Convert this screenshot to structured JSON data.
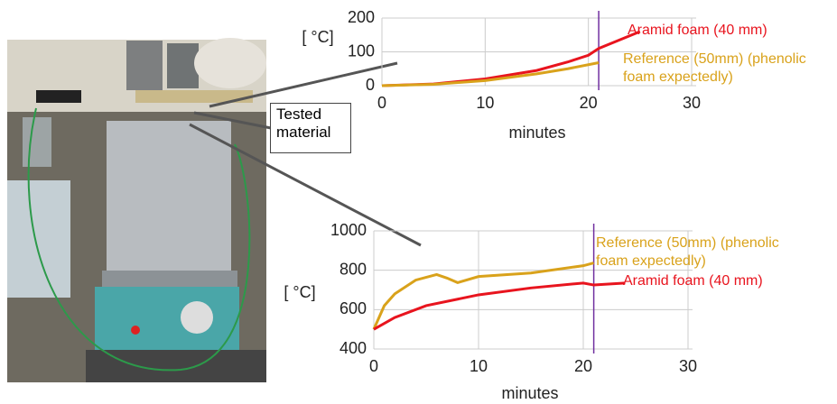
{
  "annotation": "Tested material",
  "chart_data": [
    {
      "type": "line",
      "ylabel": "[ °C]",
      "xlabel": "minutes",
      "xlim": [
        0,
        30
      ],
      "ylim": [
        0,
        200
      ],
      "xticks": [
        0,
        10,
        20,
        30
      ],
      "yticks": [
        0,
        100,
        200
      ],
      "grid": true,
      "marker_line": 21,
      "marker_color": "#7030a0",
      "series": [
        {
          "name": "Aramid  foam (40 mm)",
          "color": "#e8141e",
          "x": [
            0,
            5,
            10,
            15,
            18,
            20,
            21,
            23,
            25
          ],
          "values": [
            0,
            5,
            20,
            45,
            70,
            90,
            110,
            135,
            160
          ]
        },
        {
          "name": "Reference (50mm) (phenolic foam expectedly)",
          "color": "#d9a21b",
          "x": [
            0,
            5,
            10,
            15,
            18,
            21
          ],
          "values": [
            0,
            4,
            15,
            35,
            50,
            68
          ]
        }
      ]
    },
    {
      "type": "line",
      "ylabel": "[ °C]",
      "xlabel": "minutes",
      "xlim": [
        0,
        30
      ],
      "ylim": [
        400,
        1000
      ],
      "xticks": [
        0,
        10,
        20,
        30
      ],
      "yticks": [
        400,
        600,
        800,
        1000
      ],
      "grid": true,
      "marker_line": 21,
      "marker_color": "#7030a0",
      "series": [
        {
          "name": "Reference (50mm) (phenolic foam expectedly)",
          "color": "#d9a21b",
          "x": [
            0,
            1,
            2,
            4,
            6,
            7,
            8,
            10,
            15,
            20,
            21
          ],
          "values": [
            500,
            620,
            680,
            750,
            778,
            760,
            737,
            768,
            786,
            823,
            837
          ]
        },
        {
          "name": "Aramid  foam (40 mm)",
          "color": "#e8141e",
          "x": [
            0,
            2,
            5,
            10,
            15,
            20,
            21,
            24
          ],
          "values": [
            500,
            560,
            620,
            675,
            710,
            735,
            725,
            735
          ]
        }
      ]
    }
  ]
}
